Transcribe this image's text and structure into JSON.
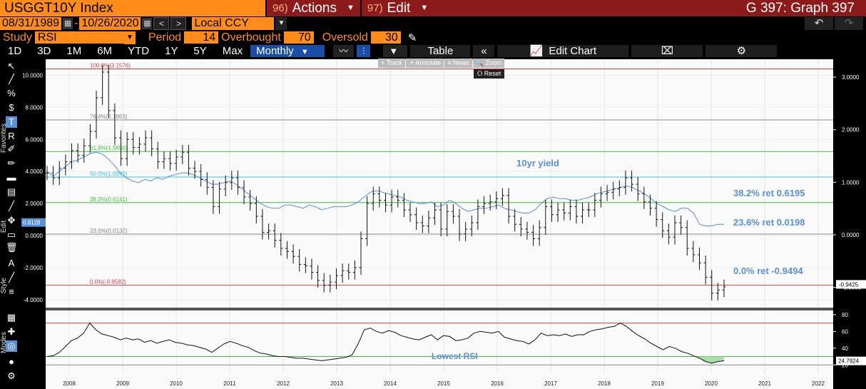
{
  "header": {
    "ticker": "USGGT10Y Index",
    "actions_num": "96)",
    "actions_label": "Actions",
    "edit_num": "97)",
    "edit_label": "Edit",
    "graph_title": "G 397: Graph 397"
  },
  "dates": {
    "start": "08/31/1989",
    "sep": "-",
    "end": "10/26/2020",
    "currency": "Local CCY"
  },
  "study": {
    "label": "Study",
    "value": "RSI",
    "period_label": "Period",
    "period": "14",
    "overbought_label": "Overbought",
    "overbought": "70",
    "oversold_label": "Oversold",
    "oversold": "30"
  },
  "toolbar": {
    "ranges": [
      "1D",
      "3D",
      "1M",
      "6M",
      "YTD",
      "1Y",
      "5Y",
      "Max"
    ],
    "frequency": "Monthly",
    "table_label": "Table",
    "edit_chart_label": "Edit Chart"
  },
  "mini_toolbar": [
    "+ Track",
    "↗ Annotate",
    "≡ News",
    "🔍 Zoom"
  ],
  "reset_label": "Reset",
  "left_toolbar": {
    "favorites": "Favorites",
    "edit": "Edit",
    "style": "Style",
    "modes": "Modes"
  },
  "chart_data": {
    "type": "line",
    "x_ticks": [
      "2008",
      "2009",
      "2010",
      "2011",
      "2012",
      "2013",
      "2014",
      "2015",
      "2016",
      "2017",
      "2018",
      "2019",
      "2020",
      "2021",
      "2022"
    ],
    "left_axis": {
      "ticks": [
        "10.0000",
        "8.0000",
        "6.0000",
        "4.0000",
        "2.0000",
        "0.0000",
        "-2.0000",
        "-4.0000"
      ],
      "ylim": [
        -4.5,
        11
      ]
    },
    "right_axis": {
      "ticks": [
        "3.0000",
        "2.0000",
        "1.0000",
        "0.0000",
        "-1.0000"
      ]
    },
    "left_marker": "0.8128",
    "right_marker": "-0.9425",
    "fib_levels": [
      {
        "label": "100.0%(3.1576)",
        "value": 3.1576,
        "color": "#d94040"
      },
      {
        "label": "76.4%(2.1863)",
        "value": 2.1863,
        "color": "#888888"
      },
      {
        "label": "61.8%(1.5856)",
        "value": 1.5856,
        "color": "#40c040"
      },
      {
        "label": "50.0%(1.0999)",
        "value": 1.0999,
        "color": "#40c0e0"
      },
      {
        "label": "38.2%(0.6141)",
        "value": 0.6141,
        "color": "#40c040"
      },
      {
        "label": "23.6%(0.0132)",
        "value": 0.0132,
        "color": "#888888"
      },
      {
        "label": "0.0%(-0.9582)",
        "value": -0.9582,
        "color": "#d94040"
      }
    ],
    "annotations": [
      {
        "text": "10yr yield",
        "color": "#5b8fd6"
      },
      {
        "text": "38.2% ret 0.6195",
        "color": "#5b8fd6"
      },
      {
        "text": "23.6% ret 0.0198",
        "color": "#5b8fd6"
      },
      {
        "text": "0.0% ret -0.9494",
        "color": "#5b8fd6"
      }
    ],
    "price_series": [
      3.9,
      3.6,
      4.2,
      4.6,
      5.3,
      5.0,
      5.6,
      6.5,
      8.6,
      10.2,
      7.8,
      6.1,
      4.8,
      6.0,
      5.5,
      5.7,
      6.1,
      5.4,
      4.6,
      4.8,
      4.5,
      4.9,
      5.2,
      4.2,
      4.0,
      3.5,
      3.0,
      1.8,
      2.9,
      3.3,
      3.6,
      3.0,
      2.4,
      2.0,
      1.2,
      0.2,
      0.3,
      -0.3,
      -0.8,
      -1.0,
      -1.3,
      -1.8,
      -1.9,
      -2.3,
      -2.8,
      -3.1,
      -2.9,
      -2.5,
      -2.2,
      -2.3,
      -2.0,
      -0.2,
      2.0,
      2.6,
      2.2,
      1.9,
      2.4,
      2.2,
      1.6,
      1.3,
      0.8,
      0.6,
      1.1,
      1.6,
      0.4,
      1.5,
      1.2,
      0.1,
      0.4,
      0.8,
      1.8,
      2.0,
      2.1,
      2.3,
      2.5,
      1.2,
      0.7,
      0.4,
      0.2,
      -0.2,
      0.5,
      1.8,
      1.3,
      1.6,
      1.4,
      1.8,
      1.2,
      1.6,
      1.6,
      2.2,
      2.6,
      2.7,
      2.9,
      3.0,
      3.6,
      3.2,
      2.6,
      2.1,
      1.7,
      1.0,
      0.3,
      -0.1,
      0.8,
      0.5,
      -0.8,
      -1.2,
      -1.7,
      -2.6,
      -3.6,
      -3.4,
      -3.2
    ],
    "yield_series": [
      4.0,
      3.7,
      4.0,
      4.3,
      4.6,
      4.7,
      4.9,
      5.1,
      5.2,
      5.1,
      4.8,
      4.4,
      3.9,
      3.6,
      3.4,
      3.3,
      3.5,
      3.4,
      3.6,
      3.5,
      3.7,
      3.8,
      3.9,
      3.9,
      3.8,
      3.6,
      3.4,
      3.2,
      3.2,
      3.3,
      3.4,
      3.2,
      2.9,
      2.6,
      2.3,
      2.0,
      1.8,
      1.7,
      1.7,
      1.9,
      1.9,
      1.8,
      1.7,
      1.9,
      1.8,
      1.6,
      1.7,
      1.8,
      1.8,
      1.8,
      1.9,
      2.1,
      2.4,
      2.7,
      2.8,
      2.7,
      2.6,
      2.5,
      2.4,
      2.2,
      2.1,
      2.0,
      2.0,
      2.1,
      1.8,
      1.9,
      2.2,
      2.0,
      1.7,
      1.5,
      1.6,
      1.7,
      1.7,
      1.8,
      1.9,
      1.7,
      1.6,
      1.5,
      1.4,
      1.4,
      1.6,
      2.0,
      2.3,
      2.4,
      2.3,
      2.3,
      2.2,
      2.2,
      2.3,
      2.4,
      2.6,
      2.7,
      2.8,
      2.9,
      3.0,
      3.1,
      3.0,
      2.8,
      2.6,
      2.3,
      2.0,
      1.8,
      1.6,
      1.5,
      1.7,
      1.7,
      1.4,
      0.7,
      0.6,
      0.6,
      0.7,
      0.7
    ],
    "rsi": {
      "ticks": [
        "80",
        "60",
        "40",
        "20"
      ],
      "ylim": [
        10,
        85
      ],
      "overbought": 70,
      "oversold": 30,
      "last_value": "24.7924",
      "annotation": "Lowest RSI",
      "series": [
        30,
        31,
        35,
        42,
        49,
        52,
        58,
        70,
        62,
        57,
        55,
        53,
        50,
        52,
        50,
        51,
        47,
        49,
        46,
        48,
        50,
        47,
        46,
        44,
        43,
        41,
        39,
        35,
        40,
        45,
        48,
        46,
        43,
        41,
        37,
        34,
        33,
        31,
        30,
        30,
        29,
        28,
        28,
        27,
        26,
        25,
        26,
        27,
        28,
        29,
        32,
        45,
        62,
        64,
        60,
        58,
        61,
        59,
        55,
        53,
        51,
        50,
        53,
        56,
        50,
        55,
        54,
        49,
        50,
        52,
        58,
        60,
        59,
        58,
        60,
        53,
        51,
        49,
        48,
        45,
        50,
        58,
        55,
        56,
        55,
        57,
        54,
        56,
        56,
        60,
        62,
        63,
        65,
        66,
        70,
        66,
        60,
        55,
        51,
        46,
        42,
        38,
        42,
        40,
        36,
        34,
        31,
        28,
        24,
        22,
        24,
        25
      ]
    }
  }
}
